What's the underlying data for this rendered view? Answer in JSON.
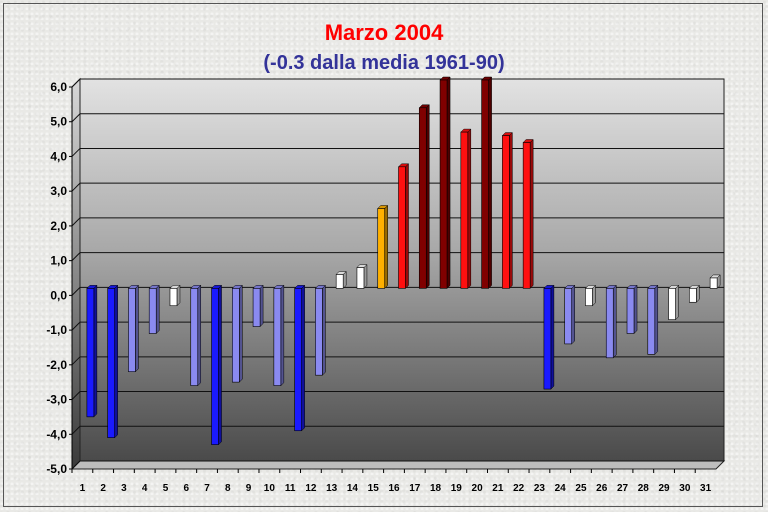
{
  "chart_data": {
    "type": "bar",
    "title": "Marzo 2004",
    "subtitle": "(-0.3 dalla media 1961-90)",
    "categories": [
      "1",
      "2",
      "3",
      "4",
      "5",
      "6",
      "7",
      "8",
      "9",
      "10",
      "11",
      "12",
      "13",
      "14",
      "15",
      "16",
      "17",
      "18",
      "19",
      "20",
      "21",
      "22",
      "23",
      "24",
      "25",
      "26",
      "27",
      "28",
      "29",
      "30",
      "31"
    ],
    "values": [
      -3.7,
      -4.3,
      -2.4,
      -1.3,
      -0.5,
      -2.8,
      -4.5,
      -2.7,
      -1.1,
      -2.8,
      -4.1,
      -2.5,
      0.4,
      0.6,
      2.3,
      3.5,
      5.2,
      6.0,
      4.5,
      6.0,
      4.4,
      4.2,
      -2.9,
      -1.6,
      -0.5,
      -2.0,
      -1.3,
      -1.9,
      -0.9,
      -0.4,
      0.3
    ],
    "bar_colors": [
      "#1a1aff",
      "#1a1aff",
      "#8a8af0",
      "#8a8af0",
      "#ffffff",
      "#8a8af0",
      "#1a1aff",
      "#8a8af0",
      "#8a8af0",
      "#8a8af0",
      "#1a1aff",
      "#8a8af0",
      "#ffffff",
      "#ffffff",
      "#ffb000",
      "#ff1010",
      "#800000",
      "#800000",
      "#ff1010",
      "#800000",
      "#ff1010",
      "#ff1010",
      "#1a1aff",
      "#8a8af0",
      "#ffffff",
      "#8a8af0",
      "#8a8af0",
      "#8a8af0",
      "#ffffff",
      "#ffffff",
      "#ffffff"
    ],
    "yticks": [
      "-5,0",
      "-4,0",
      "-3,0",
      "-2,0",
      "-1,0",
      "0,0",
      "1,0",
      "2,0",
      "3,0",
      "4,0",
      "5,0",
      "6,0"
    ],
    "ylim": [
      -5,
      6
    ],
    "grid": true,
    "xlabel": "",
    "ylabel": ""
  }
}
